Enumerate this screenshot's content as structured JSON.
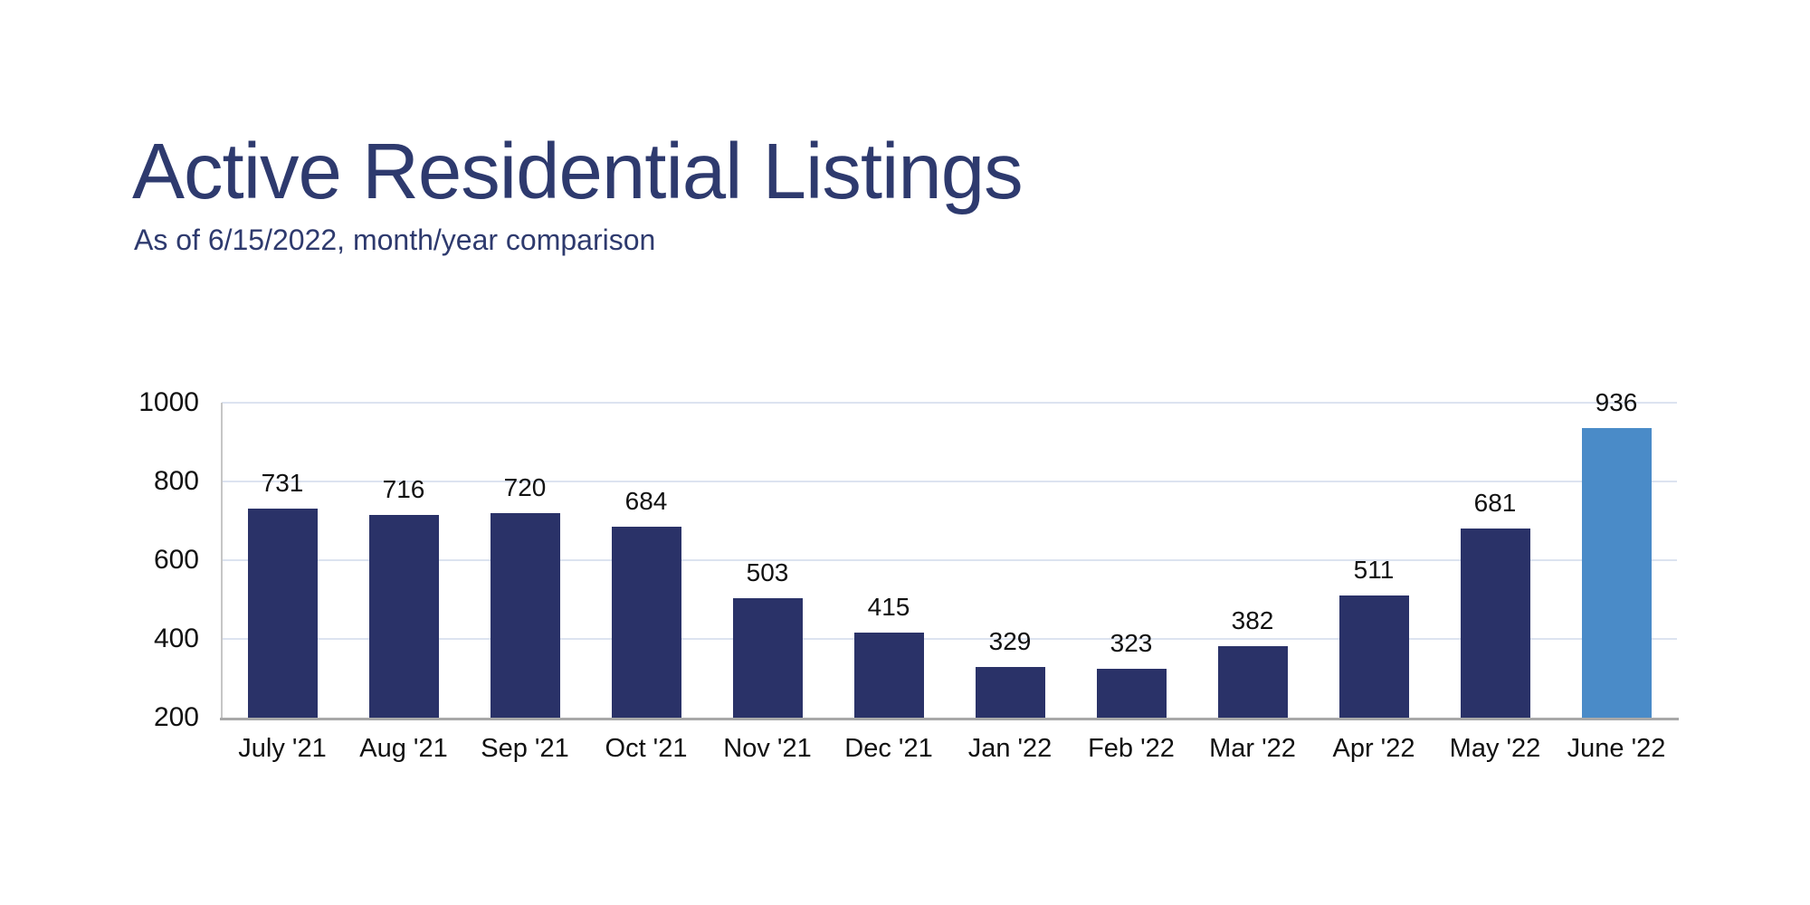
{
  "page": {
    "title": "Active Residential Listings",
    "subtitle": "As of 6/15/2022, month/year comparison"
  },
  "colors": {
    "title_text": "#2e3a6e",
    "bar_default": "#2a3268",
    "bar_highlight": "#4a8bc8",
    "gridline": "#dce3f0",
    "baseline": "#a8a8a8",
    "y_axis_line": "#c6c6c6",
    "label_text": "#111111"
  },
  "chart_data": {
    "type": "bar",
    "title": "Active Residential Listings",
    "subtitle": "As of 6/15/2022, month/year comparison",
    "categories": [
      "July '21",
      "Aug '21",
      "Sep '21",
      "Oct '21",
      "Nov '21",
      "Dec '21",
      "Jan '22",
      "Feb '22",
      "Mar '22",
      "Apr '22",
      "May '22",
      "June '22"
    ],
    "values": [
      731,
      716,
      720,
      684,
      503,
      415,
      329,
      323,
      382,
      511,
      681,
      936
    ],
    "data_labels_shown": true,
    "highlight_index": 11,
    "xlabel": "",
    "ylabel": "",
    "ylim": [
      200,
      1000
    ],
    "y_ticks": [
      200,
      400,
      600,
      800,
      1000
    ],
    "grid": true,
    "legend_position": "none"
  }
}
